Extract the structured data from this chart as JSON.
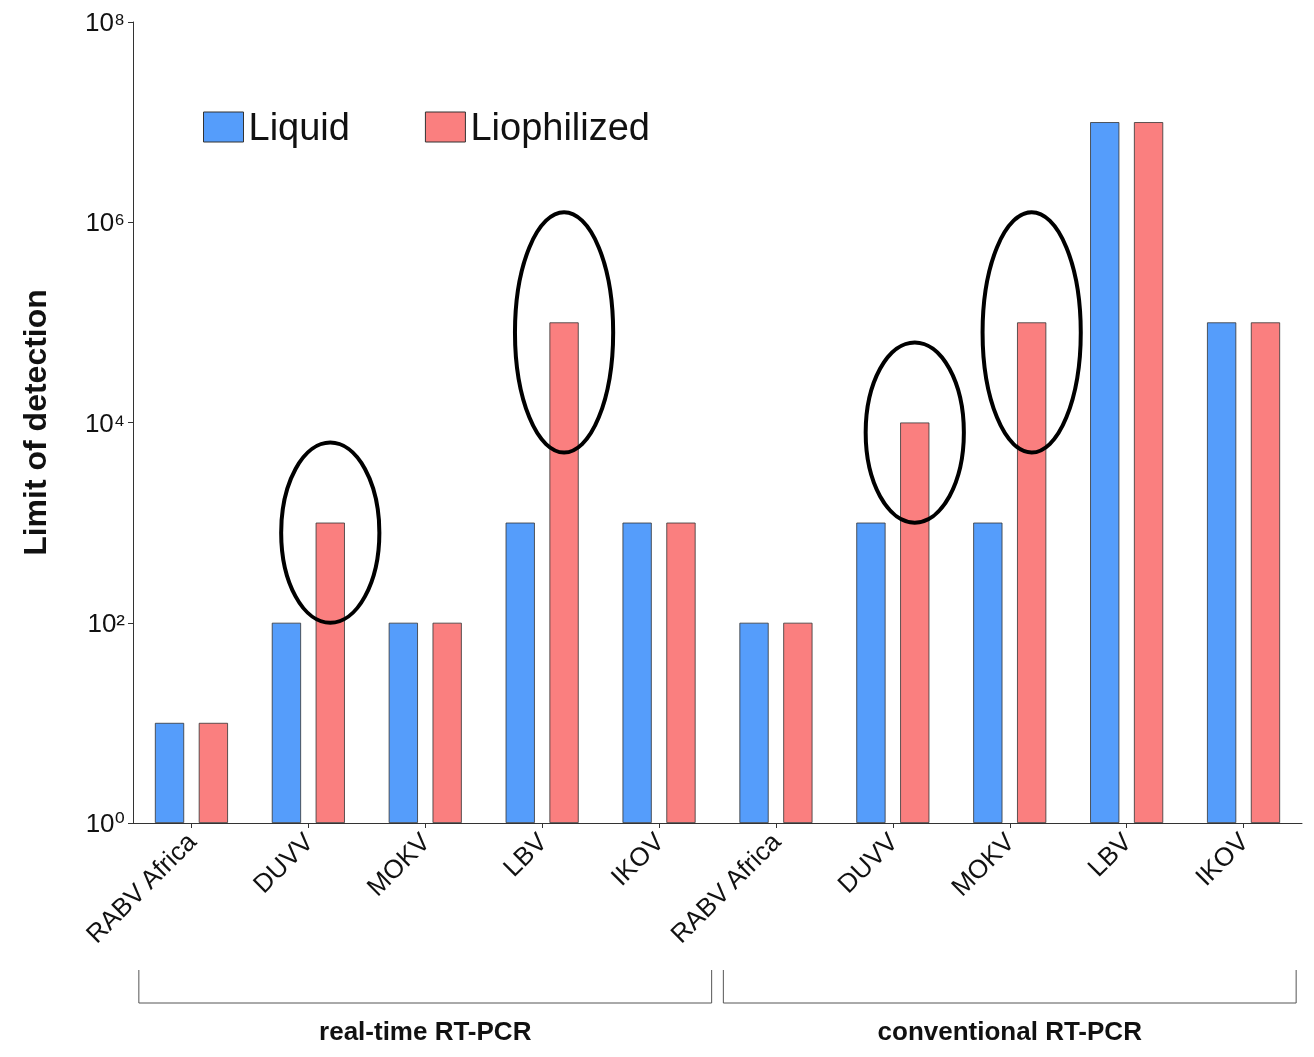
{
  "chart_data": {
    "type": "bar",
    "ylabel": "Limit of detection",
    "categories": [
      "RABV Africa",
      "DUVV",
      "MOKV",
      "LBV",
      "IKOV",
      "RABV Africa",
      "DUVV",
      "MOKV",
      "LBV",
      "IKOV"
    ],
    "series": [
      {
        "name": "Liquid",
        "color": "#559dfb",
        "values": [
          10,
          100,
          100,
          1000,
          1000,
          100,
          1000,
          1000,
          10000000,
          100000
        ]
      },
      {
        "name": "Liophilized",
        "color": "#fa7f7f",
        "values": [
          10,
          1000,
          100,
          100000,
          1000,
          100,
          10000,
          100000,
          10000000,
          100000
        ]
      }
    ],
    "log": true,
    "ylim": [
      1,
      100000000
    ],
    "yticks": [
      {
        "value": 1,
        "label": "10⁰"
      },
      {
        "value": 100,
        "label": "10²"
      },
      {
        "value": 10000,
        "label": "10⁴"
      },
      {
        "value": 1000000,
        "label": "10⁶"
      },
      {
        "value": 100000000,
        "label": "10⁸"
      }
    ],
    "grid": false,
    "legend": "top left",
    "annotations": [
      "real-time RT-PCR",
      "conventional RT-PCR"
    ]
  }
}
